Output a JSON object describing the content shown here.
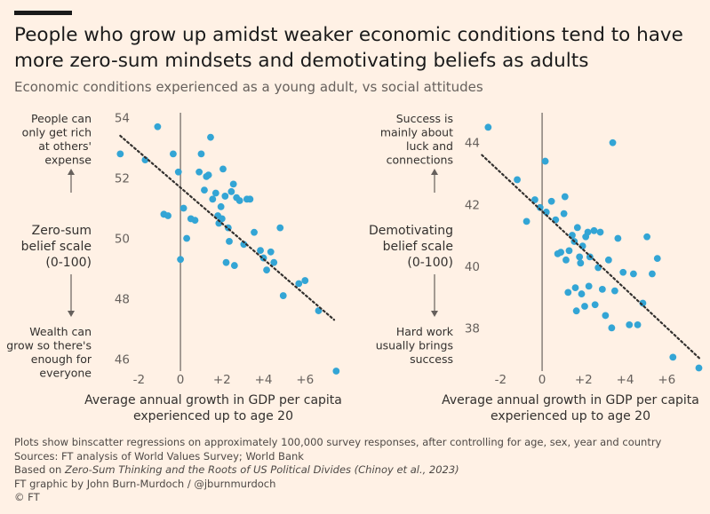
{
  "header": {
    "title": "People who grow up amidst weaker economic conditions tend to have more zero-sum mindsets and demotivating beliefs as adults",
    "subtitle": "Economic conditions experienced as a young adult, vs social attitudes"
  },
  "colors": {
    "dot": "#33a5d5",
    "trend": "#33302e",
    "zero_line": "#8f8780",
    "background": "#fff1e5"
  },
  "chart_data": [
    {
      "type": "scatter",
      "title": "Zero-sum belief scale (0-100)",
      "ylabel": [
        "Zero-sum",
        "belief scale",
        "(0-100)"
      ],
      "top_label": [
        "People can",
        "only get rich",
        "at others'",
        "expense"
      ],
      "bottom_label": [
        "Wealth can",
        "grow so there's",
        "enough for",
        "everyone"
      ],
      "xlabel": [
        "Average annual growth in GDP per capita",
        "experienced up to age 20"
      ],
      "xlim": [
        -3.0,
        7.7
      ],
      "ylim": [
        45.6,
        54.4
      ],
      "x_ticks": [
        -2,
        0,
        2,
        4,
        6
      ],
      "x_tick_labels": [
        "-2",
        "0",
        "+2",
        "+4",
        "+6"
      ],
      "y_ticks": [
        46,
        48,
        50,
        52,
        54
      ],
      "y_tick_labels": [
        "46",
        "48",
        "50",
        "52",
        "54"
      ],
      "trend": {
        "x": [
          -2.9,
          7.4
        ],
        "y": [
          53.4,
          47.3
        ]
      },
      "points": [
        [
          -2.9,
          52.8
        ],
        [
          -1.7,
          52.6
        ],
        [
          -1.1,
          53.7
        ],
        [
          -0.8,
          50.8
        ],
        [
          -0.6,
          50.75
        ],
        [
          -0.35,
          52.8
        ],
        [
          -0.1,
          52.2
        ],
        [
          0.0,
          49.3
        ],
        [
          0.15,
          51.0
        ],
        [
          0.3,
          50.0
        ],
        [
          0.5,
          50.65
        ],
        [
          0.7,
          50.6
        ],
        [
          0.9,
          52.2
        ],
        [
          1.0,
          52.8
        ],
        [
          1.15,
          51.6
        ],
        [
          1.25,
          52.05
        ],
        [
          1.35,
          52.1
        ],
        [
          1.45,
          53.35
        ],
        [
          1.55,
          51.3
        ],
        [
          1.7,
          51.5
        ],
        [
          1.8,
          50.75
        ],
        [
          1.85,
          50.5
        ],
        [
          1.95,
          51.05
        ],
        [
          2.0,
          50.65
        ],
        [
          2.05,
          52.3
        ],
        [
          2.15,
          51.4
        ],
        [
          2.2,
          49.2
        ],
        [
          2.3,
          50.35
        ],
        [
          2.35,
          49.9
        ],
        [
          2.45,
          51.55
        ],
        [
          2.55,
          51.8
        ],
        [
          2.6,
          49.1
        ],
        [
          2.7,
          51.35
        ],
        [
          2.85,
          51.25
        ],
        [
          3.05,
          49.8
        ],
        [
          3.2,
          51.3
        ],
        [
          3.35,
          51.3
        ],
        [
          3.55,
          50.2
        ],
        [
          3.85,
          49.6
        ],
        [
          4.0,
          49.35
        ],
        [
          4.15,
          48.95
        ],
        [
          4.35,
          49.55
        ],
        [
          4.5,
          49.2
        ],
        [
          4.8,
          50.35
        ],
        [
          4.95,
          48.1
        ],
        [
          5.7,
          48.5
        ],
        [
          6.0,
          48.6
        ],
        [
          6.65,
          47.6
        ],
        [
          7.5,
          45.6
        ]
      ]
    },
    {
      "type": "scatter",
      "title": "Demotivating belief scale (0-100)",
      "ylabel": [
        "Demotivating",
        "belief scale",
        "(0-100)"
      ],
      "top_label": [
        "Success is",
        "mainly about",
        "luck and",
        "connections"
      ],
      "bottom_label": [
        "Hard work",
        "usually brings",
        "success"
      ],
      "xlabel": [
        "Average annual growth in GDP per capita",
        "experienced up to age 20"
      ],
      "xlim": [
        -3.0,
        7.7
      ],
      "ylim": [
        36.6,
        45.2
      ],
      "x_ticks": [
        -2,
        0,
        2,
        4,
        6
      ],
      "x_tick_labels": [
        "-2",
        "0",
        "+2",
        "+4",
        "+6"
      ],
      "y_ticks": [
        38,
        40,
        42,
        44
      ],
      "y_tick_labels": [
        "38",
        "40",
        "42",
        "44"
      ],
      "trend": {
        "x": [
          -2.9,
          7.6
        ],
        "y": [
          43.6,
          37.0
        ]
      },
      "points": [
        [
          -2.6,
          44.5
        ],
        [
          -1.2,
          42.8
        ],
        [
          -0.75,
          41.45
        ],
        [
          -0.35,
          42.15
        ],
        [
          -0.1,
          41.9
        ],
        [
          0.15,
          43.4
        ],
        [
          0.2,
          41.75
        ],
        [
          0.45,
          42.1
        ],
        [
          0.65,
          41.5
        ],
        [
          0.75,
          40.4
        ],
        [
          0.9,
          40.45
        ],
        [
          1.05,
          41.7
        ],
        [
          1.1,
          42.25
        ],
        [
          1.15,
          40.2
        ],
        [
          1.25,
          39.15
        ],
        [
          1.3,
          40.5
        ],
        [
          1.45,
          41.0
        ],
        [
          1.55,
          40.8
        ],
        [
          1.6,
          39.3
        ],
        [
          1.65,
          38.55
        ],
        [
          1.7,
          41.25
        ],
        [
          1.8,
          40.3
        ],
        [
          1.85,
          40.1
        ],
        [
          1.9,
          39.1
        ],
        [
          1.95,
          40.65
        ],
        [
          2.05,
          38.7
        ],
        [
          2.1,
          40.95
        ],
        [
          2.2,
          41.1
        ],
        [
          2.25,
          39.35
        ],
        [
          2.3,
          40.3
        ],
        [
          2.5,
          41.15
        ],
        [
          2.55,
          38.75
        ],
        [
          2.7,
          39.95
        ],
        [
          2.8,
          41.1
        ],
        [
          2.9,
          39.25
        ],
        [
          3.05,
          38.4
        ],
        [
          3.2,
          40.2
        ],
        [
          3.35,
          38.0
        ],
        [
          3.4,
          44.0
        ],
        [
          3.5,
          39.2
        ],
        [
          3.65,
          40.9
        ],
        [
          3.9,
          39.8
        ],
        [
          4.2,
          38.1
        ],
        [
          4.4,
          39.75
        ],
        [
          4.6,
          38.1
        ],
        [
          4.85,
          38.8
        ],
        [
          5.05,
          40.95
        ],
        [
          5.3,
          39.75
        ],
        [
          5.55,
          40.25
        ],
        [
          6.3,
          37.05
        ],
        [
          7.55,
          36.7
        ]
      ]
    }
  ],
  "footer": {
    "note": "Plots show binscatter regressions on approximately 100,000 survey responses, after controlling for age, sex, year and country",
    "sources": "Sources: FT analysis of World Values Survey; World Bank",
    "based_on_prefix": "Based on",
    "based_on_title": "Zero-Sum Thinking and the Roots of US Political Divides (Chinoy et al., 2023)",
    "credit": "FT graphic by John Burn-Murdoch / @jburnmurdoch",
    "copyright": "© FT"
  }
}
